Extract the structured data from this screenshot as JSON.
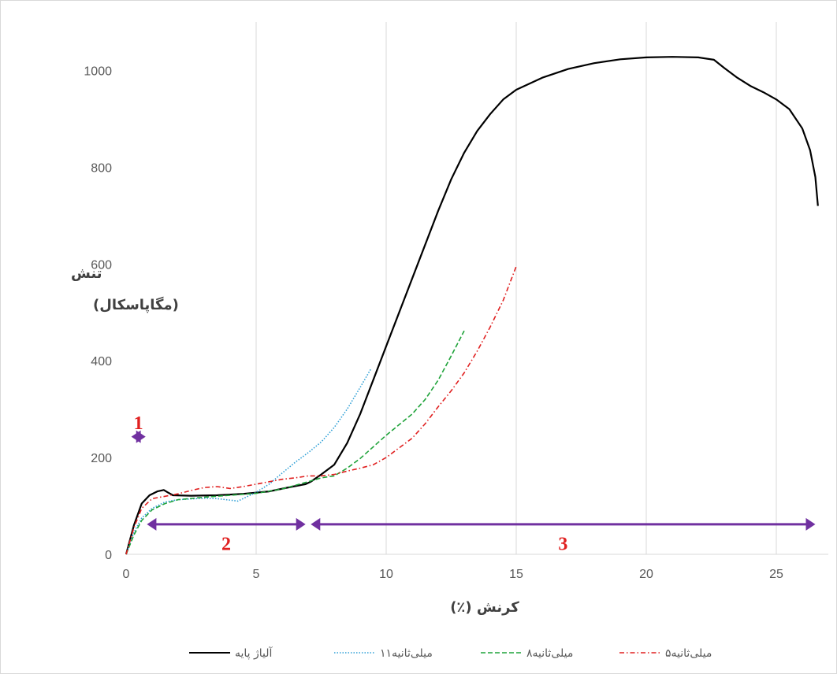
{
  "chart_data": {
    "type": "line",
    "title": "",
    "xlabel": "کرنش (٪)",
    "ylabel_line1": "تنش",
    "ylabel_line2": "(مگاپاسکال)",
    "xlim": [
      0,
      27
    ],
    "ylim": [
      0,
      1100
    ],
    "x_ticks": [
      0,
      5,
      10,
      15,
      20,
      25
    ],
    "y_ticks": [
      0,
      200,
      400,
      600,
      800,
      1000
    ],
    "grid": "vertical",
    "legend_position": "bottom",
    "series": [
      {
        "name": "آلیاژ پایه",
        "color": "#000000",
        "style": "solid",
        "points": [
          [
            0,
            0
          ],
          [
            0.3,
            60
          ],
          [
            0.6,
            105
          ],
          [
            0.9,
            122
          ],
          [
            1.2,
            130
          ],
          [
            1.45,
            133
          ],
          [
            1.6,
            128
          ],
          [
            1.8,
            122
          ],
          [
            2.5,
            121
          ],
          [
            3.5,
            122
          ],
          [
            4.5,
            125
          ],
          [
            5.5,
            130
          ],
          [
            6.4,
            140
          ],
          [
            6.9,
            145
          ],
          [
            7.1,
            150
          ],
          [
            7.5,
            165
          ],
          [
            8,
            185
          ],
          [
            8.5,
            230
          ],
          [
            9,
            290
          ],
          [
            9.5,
            360
          ],
          [
            10,
            430
          ],
          [
            10.5,
            500
          ],
          [
            11,
            570
          ],
          [
            11.5,
            640
          ],
          [
            12,
            710
          ],
          [
            12.5,
            775
          ],
          [
            13,
            830
          ],
          [
            13.5,
            875
          ],
          [
            14,
            910
          ],
          [
            14.5,
            940
          ],
          [
            15,
            960
          ],
          [
            16,
            985
          ],
          [
            17,
            1003
          ],
          [
            18,
            1015
          ],
          [
            19,
            1023
          ],
          [
            20,
            1027
          ],
          [
            21,
            1028
          ],
          [
            22,
            1027
          ],
          [
            22.6,
            1022
          ],
          [
            23,
            1005
          ],
          [
            23.5,
            985
          ],
          [
            24,
            968
          ],
          [
            24.5,
            955
          ],
          [
            25,
            940
          ],
          [
            25.5,
            920
          ],
          [
            26,
            880
          ],
          [
            26.3,
            835
          ],
          [
            26.5,
            780
          ],
          [
            26.6,
            720
          ]
        ]
      },
      {
        "name": "۱۱میلی‌ثانیه",
        "color": "#2e9fd6",
        "style": "dotted",
        "points": [
          [
            0,
            0
          ],
          [
            0.3,
            45
          ],
          [
            0.6,
            75
          ],
          [
            1,
            95
          ],
          [
            1.5,
            108
          ],
          [
            2,
            113
          ],
          [
            3,
            116
          ],
          [
            3.5,
            115
          ],
          [
            4,
            112
          ],
          [
            4.3,
            110
          ],
          [
            5,
            128
          ],
          [
            5.5,
            145
          ],
          [
            6,
            168
          ],
          [
            6.5,
            190
          ],
          [
            7,
            210
          ],
          [
            7.5,
            232
          ],
          [
            8,
            262
          ],
          [
            8.5,
            300
          ],
          [
            9,
            345
          ],
          [
            9.4,
            382
          ]
        ]
      },
      {
        "name": "۸میلی‌ثانیه",
        "color": "#1fa33a",
        "style": "dashed",
        "points": [
          [
            0,
            0
          ],
          [
            0.3,
            40
          ],
          [
            0.6,
            70
          ],
          [
            1,
            92
          ],
          [
            1.5,
            105
          ],
          [
            2,
            113
          ],
          [
            3,
            118
          ],
          [
            4,
            122
          ],
          [
            5,
            126
          ],
          [
            6,
            135
          ],
          [
            7,
            150
          ],
          [
            7.5,
            158
          ],
          [
            8,
            162
          ],
          [
            8.5,
            178
          ],
          [
            9,
            198
          ],
          [
            9.5,
            222
          ],
          [
            10,
            246
          ],
          [
            10.5,
            268
          ],
          [
            11,
            290
          ],
          [
            11.5,
            320
          ],
          [
            12,
            360
          ],
          [
            12.5,
            410
          ],
          [
            13,
            462
          ]
        ]
      },
      {
        "name": "۵میلی‌ثانیه",
        "color": "#e02020",
        "style": "dashdot",
        "points": [
          [
            0,
            0
          ],
          [
            0.3,
            55
          ],
          [
            0.6,
            95
          ],
          [
            1,
            115
          ],
          [
            1.5,
            120
          ],
          [
            2,
            125
          ],
          [
            2.5,
            132
          ],
          [
            3,
            138
          ],
          [
            3.5,
            140
          ],
          [
            4,
            136
          ],
          [
            4.5,
            140
          ],
          [
            5,
            145
          ],
          [
            5.5,
            150
          ],
          [
            6,
            155
          ],
          [
            6.5,
            158
          ],
          [
            7,
            162
          ],
          [
            7.5,
            162
          ],
          [
            8,
            165
          ],
          [
            8.5,
            172
          ],
          [
            9,
            178
          ],
          [
            9.5,
            185
          ],
          [
            10,
            200
          ],
          [
            10.5,
            220
          ],
          [
            11,
            240
          ],
          [
            11.5,
            270
          ],
          [
            12,
            305
          ],
          [
            12.5,
            338
          ],
          [
            13,
            375
          ],
          [
            13.5,
            420
          ],
          [
            14,
            470
          ],
          [
            14.5,
            525
          ],
          [
            15,
            595
          ]
        ]
      }
    ],
    "annotations": [
      {
        "label": "1",
        "x_start": 0.2,
        "x_end": 0.75,
        "y": 243,
        "label_y": 272
      },
      {
        "label": "2",
        "x_start": 0.8,
        "x_end": 6.9,
        "y": 62,
        "label_y": 22
      },
      {
        "label": "3",
        "x_start": 7.1,
        "x_end": 26.5,
        "y": 62,
        "label_y": 22
      }
    ]
  }
}
